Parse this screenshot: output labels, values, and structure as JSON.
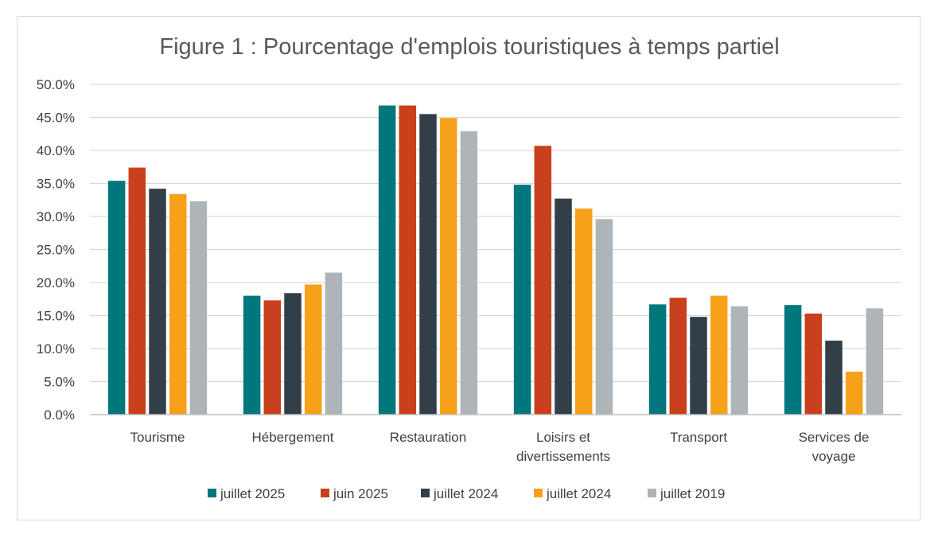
{
  "chart_data": {
    "type": "bar",
    "title": "Figure 1 : Pourcentage d'emplois touristiques à temps partiel",
    "categories": [
      [
        "Tourisme"
      ],
      [
        "Hébergement"
      ],
      [
        "Restauration"
      ],
      [
        "Loisirs et",
        "divertissements"
      ],
      [
        "Transport"
      ],
      [
        "Services de",
        "voyage"
      ]
    ],
    "series": [
      {
        "name": "juillet 2025",
        "color": "#00777D",
        "values": [
          35.4,
          18.0,
          46.8,
          34.8,
          16.7,
          16.6
        ]
      },
      {
        "name": "juin 2025",
        "color": "#C9401C",
        "values": [
          37.4,
          17.3,
          46.8,
          40.7,
          17.7,
          15.3
        ]
      },
      {
        "name": "juillet 2024",
        "color": "#323E48",
        "values": [
          34.2,
          18.4,
          45.5,
          32.7,
          14.8,
          11.2
        ]
      },
      {
        "name": "juillet 2024",
        "color": "#F7A11A",
        "values": [
          33.4,
          19.7,
          44.9,
          31.2,
          18.0,
          6.5
        ]
      },
      {
        "name": "juillet 2019",
        "color": "#AFB4B8",
        "values": [
          32.3,
          21.5,
          42.9,
          29.6,
          16.4,
          16.1
        ]
      }
    ],
    "y_ticks": [
      "0.0%",
      "5.0%",
      "10.0%",
      "15.0%",
      "20.0%",
      "25.0%",
      "30.0%",
      "35.0%",
      "40.0%",
      "45.0%",
      "50.0%"
    ],
    "ylim": [
      0,
      50
    ],
    "xlabel": "",
    "ylabel": "",
    "grid": true,
    "legend_position": "bottom"
  }
}
